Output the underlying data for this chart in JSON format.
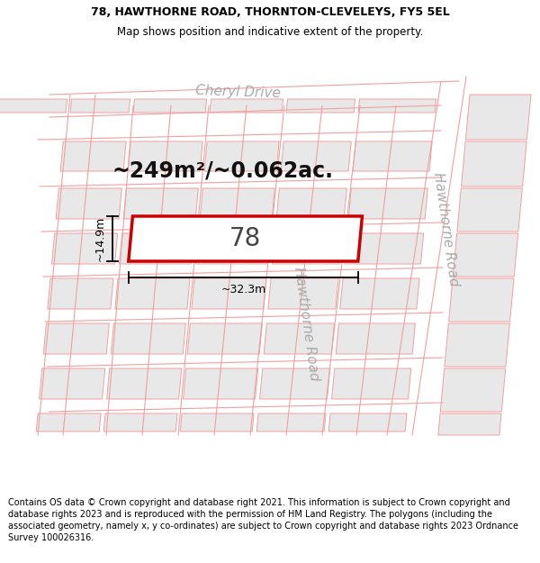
{
  "title_line1": "78, HAWTHORNE ROAD, THORNTON-CLEVELEYS, FY5 5EL",
  "title_line2": "Map shows position and indicative extent of the property.",
  "footer_text": "Contains OS data © Crown copyright and database right 2021. This information is subject to Crown copyright and database rights 2023 and is reproduced with the permission of HM Land Registry. The polygons (including the associated geometry, namely x, y co-ordinates) are subject to Crown copyright and database rights 2023 Ordnance Survey 100026316.",
  "area_text": "~249m²/~0.062ac.",
  "property_number": "78",
  "dim_width": "~32.3m",
  "dim_height": "~14.9m",
  "bg_color": "#ffffff",
  "map_bg": "#ffffff",
  "property_fill": "#ffffff",
  "property_edge": "#cc0000",
  "road_line_color": "#f0a0a0",
  "other_property_edge": "#f0a0a0",
  "other_fill": "#e8e8e8",
  "road_label_color": "#aaaaaa",
  "title_fontsize": 9,
  "footer_fontsize": 7,
  "area_fontsize": 17,
  "prop_num_fontsize": 20,
  "dim_fontsize": 9,
  "dim_color": "#000000"
}
